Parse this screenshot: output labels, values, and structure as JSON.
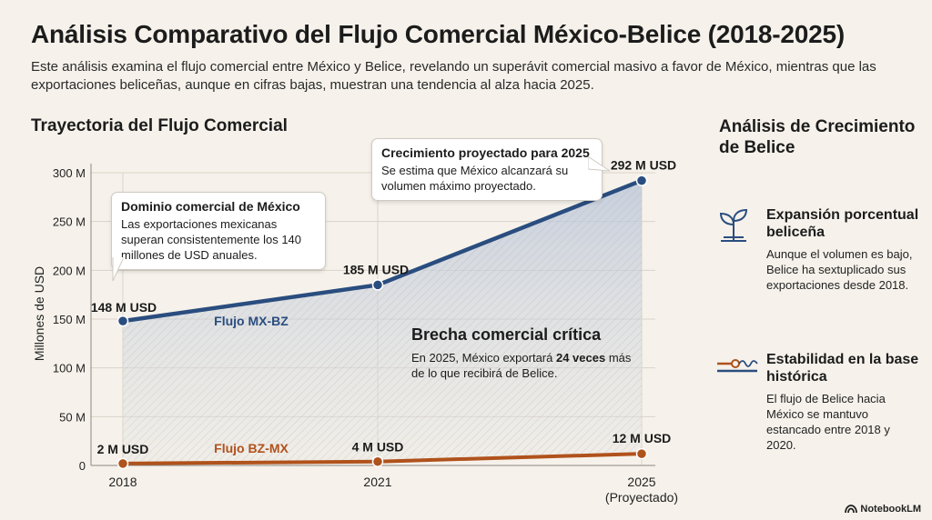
{
  "header": {
    "title": "Análisis Comparativo del Flujo Comercial México-Belice (2018-2025)",
    "subtitle": "Este análisis examina el flujo comercial entre México y Belice, revelando un superávit comercial masivo a favor de México, mientras que las exportaciones beliceñas, aunque en cifras bajas, muestran una tendencia al alza hacia 2025."
  },
  "section_title": "Trayectoria del Flujo Comercial",
  "chart_data": {
    "type": "line",
    "ylabel": "Millones de USD",
    "ylim": [
      0,
      300
    ],
    "yticks": [
      "0",
      "50 M",
      "100 M",
      "150 M",
      "200 M",
      "250 M",
      "300 M"
    ],
    "x": [
      "2018",
      "2021",
      "2025"
    ],
    "x_tick_labels": [
      "2018",
      "2021",
      "2025\n(Proyectado)"
    ],
    "grid": true,
    "series": [
      {
        "name": "Flujo MX-BZ",
        "values": [
          148,
          185,
          292
        ],
        "labels": [
          "148 M USD",
          "185 M USD",
          "292 M USD"
        ],
        "color": "#2a4d7f"
      },
      {
        "name": "Flujo BZ-MX",
        "values": [
          2,
          4,
          12
        ],
        "labels": [
          "2 M USD",
          "4 M USD",
          "12 M USD"
        ],
        "color": "#b0521c"
      }
    ]
  },
  "callouts": {
    "mexico": {
      "title": "Dominio comercial de México",
      "text": "Las exportaciones mexicanas superan consistentemente los 140 millones de USD anuales."
    },
    "growth": {
      "title": "Crecimiento proyectado para 2025",
      "text": "Se estima que México alcanzará su volumen máximo proyectado."
    },
    "gap": {
      "title": "Brecha comercial crítica",
      "text_before": "En 2025, México exportará ",
      "text_bold": "24 veces",
      "text_after": " más de lo que recibirá de Belice."
    }
  },
  "side": {
    "title": "Análisis de Crecimiento de Belice",
    "items": [
      {
        "icon": "sprout-icon",
        "heading": "Expansión porcentual beliceña",
        "text": "Aunque el volumen es bajo, Belice ha sextuplicado sus exportaciones desde 2018."
      },
      {
        "icon": "flow-lines-icon",
        "heading": "Estabilidad en la base histórica",
        "text": "El flujo de Belice hacia México se mantuvo estancado entre 2018 y 2020."
      }
    ]
  },
  "brand": "NotebookLM",
  "colors": {
    "mx": "#2a4d7f",
    "bz": "#b0521c",
    "background": "#f6f2eb"
  }
}
